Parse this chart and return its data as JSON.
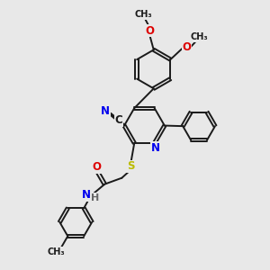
{
  "bg": "#e8e8e8",
  "bc": "#1a1a1a",
  "bw": 1.4,
  "N_col": "#0000ee",
  "O_col": "#dd0000",
  "S_col": "#bbbb00",
  "C_col": "#1a1a1a",
  "H_col": "#666666",
  "fs": 8.5,
  "fs_sm": 7.0,
  "xlim": [
    0,
    10
  ],
  "ylim": [
    0,
    10
  ],
  "figsize": [
    3.0,
    3.0
  ],
  "dpi": 100
}
